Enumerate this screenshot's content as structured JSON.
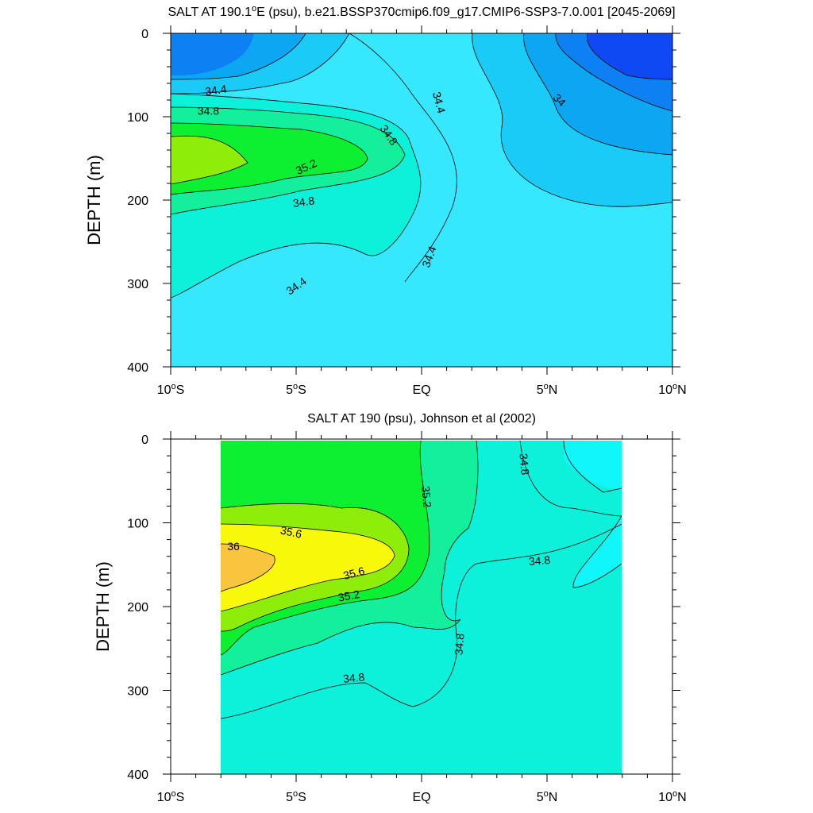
{
  "chart_data": [
    {
      "type": "contour",
      "title": "SALT AT 190.1°E (psu), b.e21.BSSP370cmip6.f09_g17.CMIP6-SSP3-7.0.001 [2045-2069]",
      "title_parts": [
        "SALT AT 190.1",
        "o",
        "E (psu), b.e21.BSSP370cmip6.f09_g17.CMIP6-SSP3-7.0.001 [2045-2069]"
      ],
      "ylabel": "DEPTH (m)",
      "xlabel": "",
      "x_range_deg": [
        -10,
        10
      ],
      "y_range_m": [
        0,
        400
      ],
      "y_reversed": true,
      "y_ticks": [
        "0",
        "100",
        "200",
        "300",
        "400"
      ],
      "x_ticks": [
        {
          "value": -10,
          "num": "10",
          "hemi": "S"
        },
        {
          "value": -5,
          "num": "5",
          "hemi": "S"
        },
        {
          "value": 0,
          "num": "EQ",
          "hemi": ""
        },
        {
          "value": 5,
          "num": "5",
          "hemi": "N"
        },
        {
          "value": 10,
          "num": "10",
          "hemi": "N"
        }
      ],
      "contour_interval_psu": 0.2,
      "contour_labels": [
        {
          "text": "34.4",
          "x": -8.2,
          "y": 68,
          "angle": -8
        },
        {
          "text": "34.8",
          "x": -8.5,
          "y": 93,
          "angle": 0
        },
        {
          "text": "34.8",
          "x": -1.3,
          "y": 122,
          "angle": 55
        },
        {
          "text": "35.2",
          "x": -4.6,
          "y": 160,
          "angle": -25
        },
        {
          "text": "34.8",
          "x": -4.7,
          "y": 202,
          "angle": -8
        },
        {
          "text": "34.4",
          "x": 0.7,
          "y": 83,
          "angle": 75
        },
        {
          "text": "34",
          "x": 5.5,
          "y": 80,
          "angle": 45
        },
        {
          "text": "34.4",
          "x": 0.3,
          "y": 268,
          "angle": -70
        },
        {
          "text": "34.4",
          "x": -5.0,
          "y": 303,
          "angle": -35
        }
      ]
    },
    {
      "type": "contour",
      "title": "SALT AT 190 (psu), Johnson et al (2002)",
      "ylabel": "DEPTH (m)",
      "xlabel": "",
      "x_range_deg": [
        -10,
        10
      ],
      "data_x_range_deg": [
        -8,
        8
      ],
      "y_range_m": [
        0,
        400
      ],
      "y_reversed": true,
      "y_ticks": [
        "0",
        "100",
        "200",
        "300",
        "400"
      ],
      "x_ticks": [
        {
          "value": -10,
          "num": "10",
          "hemi": "S"
        },
        {
          "value": -5,
          "num": "5",
          "hemi": "S"
        },
        {
          "value": 0,
          "num": "EQ",
          "hemi": ""
        },
        {
          "value": 5,
          "num": "5",
          "hemi": "N"
        },
        {
          "value": 10,
          "num": "10",
          "hemi": "N"
        }
      ],
      "contour_interval_psu": 0.2,
      "contour_labels": [
        {
          "text": "36",
          "x": -7.5,
          "y": 128,
          "angle": 0
        },
        {
          "text": "35.6",
          "x": -5.2,
          "y": 111,
          "angle": 12
        },
        {
          "text": "35.6",
          "x": -2.7,
          "y": 160,
          "angle": -15
        },
        {
          "text": "35.2",
          "x": -2.9,
          "y": 187,
          "angle": -10
        },
        {
          "text": "35.2",
          "x": 0.2,
          "y": 69,
          "angle": 85
        },
        {
          "text": "34.8",
          "x": 4.1,
          "y": 30,
          "angle": 85
        },
        {
          "text": "34.8",
          "x": 4.7,
          "y": 145,
          "angle": -5
        },
        {
          "text": "34.8",
          "x": 1.5,
          "y": 245,
          "angle": -85
        },
        {
          "text": "34.8",
          "x": -2.7,
          "y": 285,
          "angle": -5
        }
      ]
    }
  ],
  "colors": {
    "s33_8": "#0f49f4",
    "s34_0": "#0d80f3",
    "s34_2": "#0ca6f3",
    "s34_4": "#19cbf6",
    "s34_6": "#36e8fd",
    "s34_8": "#0df0da",
    "s35_0": "#12f09b",
    "s35_2": "#0cf031",
    "s35_4": "#8fee09",
    "s35_8": "#f8f80b",
    "s36_0": "#f9c53c",
    "cyan": "#10f6f9",
    "cyan_top": "#25e9fd",
    "green_light": "#0cf28e"
  }
}
